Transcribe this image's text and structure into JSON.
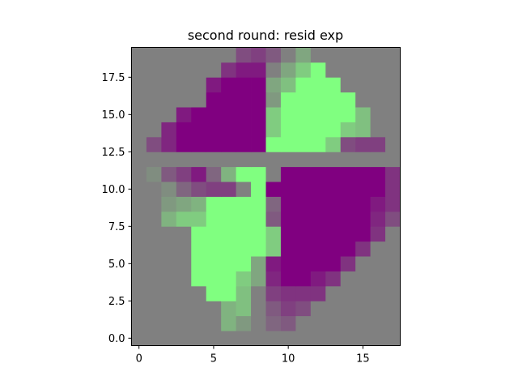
{
  "chart_data": {
    "type": "heatmap",
    "title": "second round: resid exp",
    "xlabel": "",
    "ylabel": "",
    "x_ticks": [
      "0",
      "5",
      "10",
      "15"
    ],
    "y_ticks": [
      "0.0",
      "2.5",
      "5.0",
      "7.5",
      "10.0",
      "12.5",
      "15.0",
      "17.5"
    ],
    "x_tick_values": [
      0,
      5,
      10,
      15
    ],
    "y_tick_values": [
      0,
      2.5,
      5,
      7.5,
      10,
      12.5,
      15,
      17.5
    ],
    "xlim": [
      -0.5,
      17.5
    ],
    "ylim": [
      -0.5,
      19.5
    ],
    "grid": false,
    "origin": "lower",
    "value_range": [
      -1,
      1
    ],
    "colors": {
      "neutral": "#808080",
      "negative": "#800080",
      "positive": "#80ff80"
    },
    "rows": [
      "000000000000000000",
      "000000000000000000",
      "000000000000000000",
      "0000000000000000000"
    ],
    "grid_values": [
      [
        0,
        0,
        0,
        0,
        0,
        0,
        0,
        0,
        0,
        0,
        0,
        0,
        0,
        0,
        0,
        0,
        0,
        0
      ],
      [
        0,
        0,
        0,
        0,
        0,
        0,
        0.4,
        0.2,
        0,
        -0.2,
        -0.3,
        0,
        0,
        0,
        0,
        0,
        0,
        0
      ],
      [
        0,
        0,
        0,
        0,
        0,
        0,
        0.4,
        0.5,
        0,
        -0.3,
        -0.5,
        -0.4,
        0,
        0,
        0,
        0,
        0,
        0
      ],
      [
        0,
        0,
        0,
        0,
        0,
        1,
        1,
        0.5,
        0,
        -0.5,
        -0.6,
        -0.6,
        -0.6,
        0,
        0,
        0,
        0,
        0
      ],
      [
        0,
        0,
        0,
        0,
        1,
        1,
        1,
        0.6,
        0.3,
        -0.7,
        -1,
        -1,
        -0.8,
        -0.6,
        0,
        0,
        0,
        0
      ],
      [
        0,
        0,
        0,
        0,
        1,
        1,
        1,
        1,
        0.3,
        -0.8,
        -1,
        -1,
        -1,
        -1,
        -0.6,
        0,
        0,
        0
      ],
      [
        0,
        0,
        0,
        0,
        1,
        1,
        1,
        1,
        1,
        0.6,
        -1,
        -1,
        -1,
        -1,
        -1,
        -0.6,
        0,
        0
      ],
      [
        0,
        0,
        0,
        0,
        1,
        1,
        1,
        1,
        1,
        0.6,
        -1,
        -1,
        -1,
        -1,
        -1,
        -1,
        -0.6,
        0
      ],
      [
        0,
        0,
        0.4,
        0.6,
        0.6,
        1,
        1,
        1,
        1,
        -0.3,
        -1,
        -1,
        -1,
        -1,
        -1,
        -1,
        -0.7,
        -0.4
      ],
      [
        0,
        0,
        0.2,
        0.3,
        0.4,
        1,
        1,
        1,
        1,
        -0.2,
        -1,
        -1,
        -1,
        -1,
        -1,
        -1,
        -0.8,
        -0.6
      ],
      [
        0,
        0,
        0.1,
        -0.2,
        -0.4,
        -0.5,
        -0.5,
        0,
        1,
        -1,
        -1,
        -1,
        -1,
        -1,
        -1,
        -1,
        -1,
        -0.6
      ],
      [
        0,
        0.1,
        -0.3,
        -0.5,
        -0.8,
        -0.2,
        0.4,
        1,
        1,
        0,
        -1,
        -1,
        -1,
        -1,
        -1,
        -1,
        -1,
        -0.6
      ],
      [
        0,
        0,
        0,
        0,
        0,
        0,
        0,
        0,
        0,
        0,
        0,
        0,
        0,
        0,
        0,
        0,
        0,
        0
      ],
      [
        0,
        -0.4,
        -0.7,
        -1,
        -1,
        -1,
        -1,
        -1,
        -1,
        1,
        1,
        1,
        1,
        0.6,
        -0.4,
        -0.5,
        -0.5,
        0
      ],
      [
        0,
        0,
        -0.7,
        -1,
        -1,
        -1,
        -1,
        -1,
        -1,
        0.6,
        1,
        1,
        1,
        1,
        0.6,
        0.5,
        0,
        0
      ],
      [
        0,
        0,
        0,
        -0.8,
        -1,
        -1,
        -1,
        -1,
        -1,
        0.6,
        1,
        1,
        1,
        1,
        1,
        0.5,
        0,
        0
      ],
      [
        0,
        0,
        0,
        0,
        0,
        -1,
        -1,
        -1,
        -1,
        0.2,
        1,
        1,
        1,
        1,
        1,
        0,
        0,
        0
      ],
      [
        0,
        0,
        0,
        0,
        0,
        -0.8,
        -1,
        -1,
        -1,
        0.3,
        0.5,
        1,
        1,
        1,
        0,
        0,
        0,
        0
      ],
      [
        0,
        0,
        0,
        0,
        0,
        0,
        -0.6,
        -0.8,
        -0.8,
        0,
        0.3,
        0.6,
        1,
        0,
        0,
        0,
        0,
        0
      ],
      [
        0,
        0,
        0,
        0,
        0,
        0,
        0,
        -0.4,
        -0.5,
        -0.3,
        0,
        0.3,
        0,
        0,
        0,
        0,
        0,
        0
      ]
    ]
  }
}
